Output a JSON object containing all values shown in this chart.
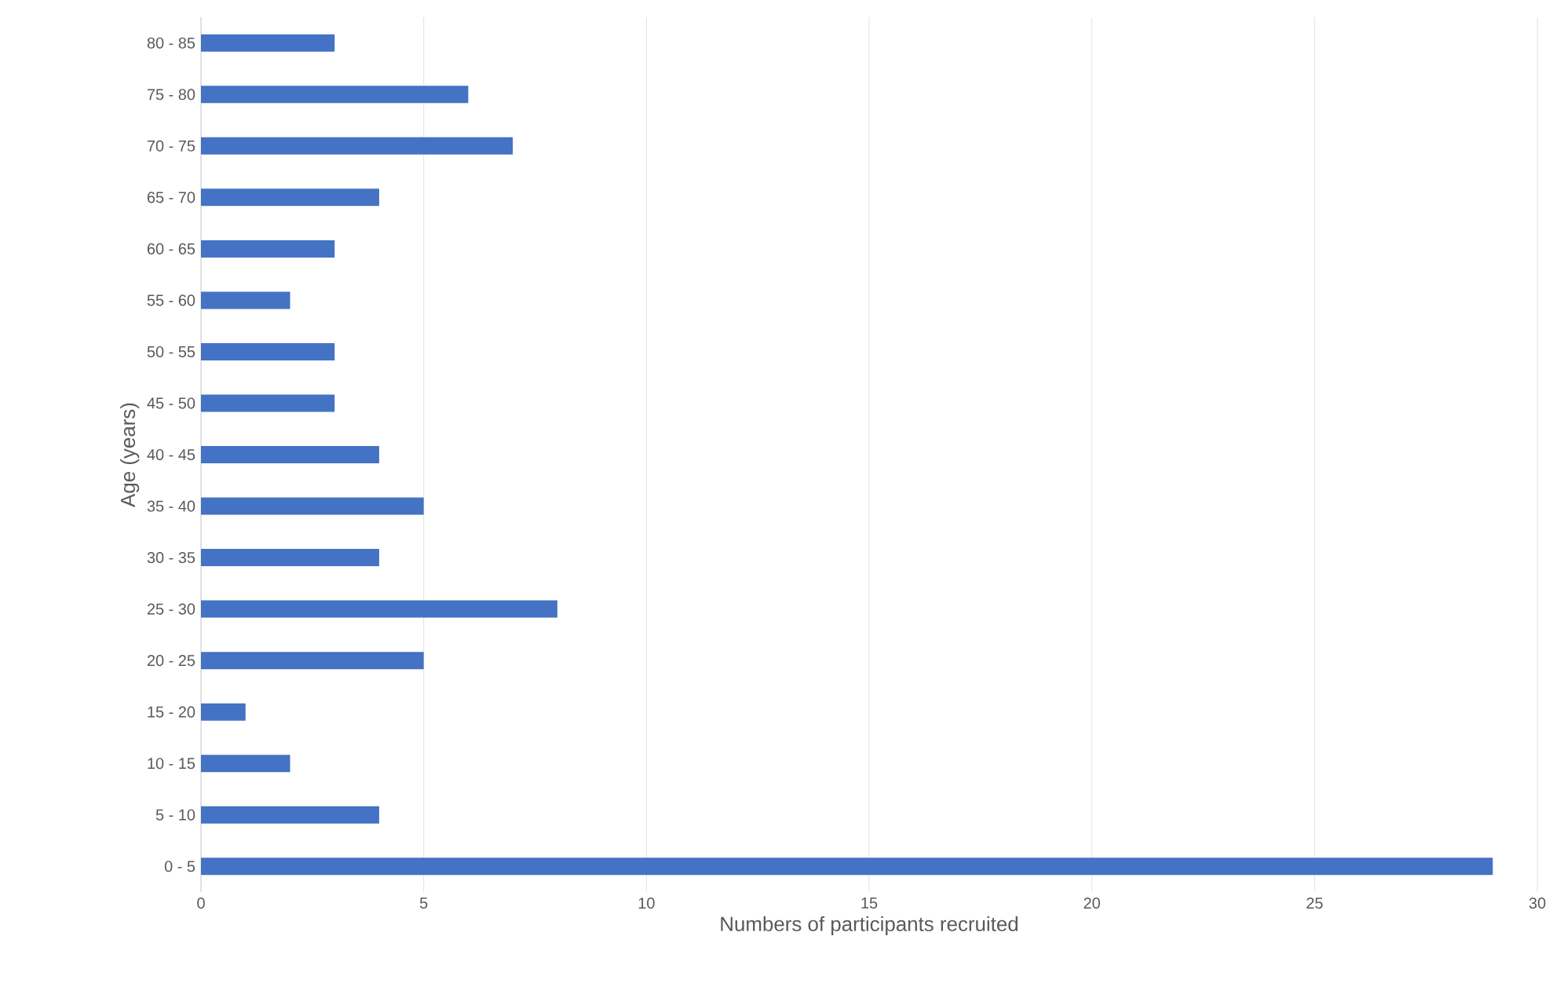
{
  "chart_data": {
    "type": "bar",
    "orientation": "horizontal",
    "xlabel": "Numbers of participants recruited",
    "ylabel": "Age (years)",
    "categories": [
      "80 - 85",
      "75 - 80",
      "70 - 75",
      "65 - 70",
      "60 - 65",
      "55 - 60",
      "50 - 55",
      "45 - 50",
      "40 - 45",
      "35 - 40",
      "30 - 35",
      "25 - 30",
      "20 - 25",
      "15 - 20",
      "10 - 15",
      "5 - 10",
      "0 - 5"
    ],
    "values": [
      3,
      6,
      7,
      4,
      3,
      2,
      3,
      3,
      4,
      5,
      4,
      8,
      5,
      1,
      2,
      4,
      29
    ],
    "color": "#4472c4",
    "xlim": [
      0,
      30
    ],
    "xticks": [
      0,
      5,
      10,
      15,
      20,
      25,
      30
    ],
    "grid": "x"
  }
}
